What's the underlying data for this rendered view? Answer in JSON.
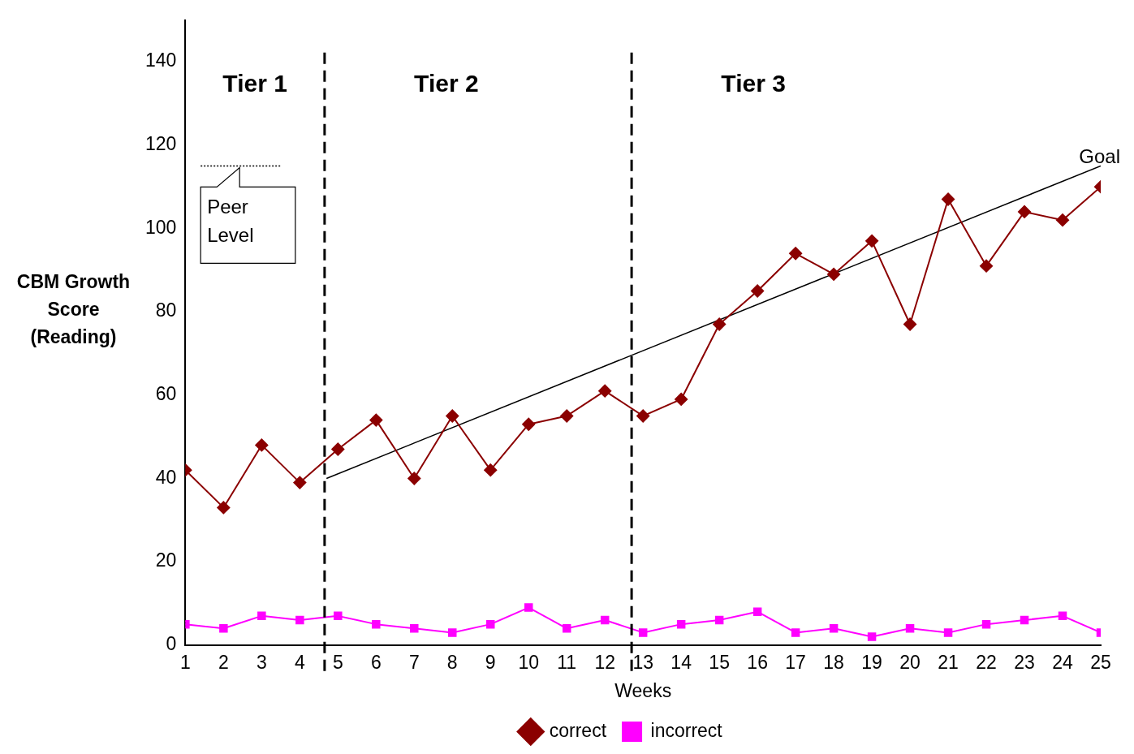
{
  "chart_data": {
    "type": "line",
    "xlabel": "Weeks",
    "ylabel": "CBM Growth Score (Reading)",
    "x": [
      1,
      2,
      3,
      4,
      5,
      6,
      7,
      8,
      9,
      10,
      11,
      12,
      13,
      14,
      15,
      16,
      17,
      18,
      19,
      20,
      21,
      22,
      23,
      24,
      25
    ],
    "xlim": [
      1,
      25
    ],
    "xticks": [
      1,
      2,
      3,
      4,
      5,
      6,
      7,
      8,
      9,
      10,
      11,
      12,
      13,
      14,
      15,
      16,
      17,
      18,
      19,
      20,
      21,
      22,
      23,
      24,
      25
    ],
    "ylim": [
      0,
      150
    ],
    "yticks": [
      0,
      20,
      40,
      60,
      80,
      100,
      120,
      140
    ],
    "series": [
      {
        "name": "correct",
        "color": "#8b0000",
        "marker": "diamond",
        "values": [
          42,
          33,
          48,
          39,
          47,
          54,
          40,
          55,
          42,
          53,
          55,
          61,
          55,
          59,
          77,
          85,
          94,
          89,
          97,
          77,
          107,
          91,
          104,
          102,
          110
        ]
      },
      {
        "name": "incorrect",
        "color": "#ff00ff",
        "marker": "square",
        "values": [
          5,
          4,
          7,
          6,
          7,
          5,
          4,
          3,
          5,
          9,
          4,
          6,
          3,
          5,
          6,
          8,
          3,
          4,
          2,
          4,
          3,
          5,
          6,
          7,
          3
        ]
      },
      {
        "name": "Goal",
        "color": "#000000",
        "marker": "none",
        "line_style": "solid",
        "x": [
          4.7,
          25
        ],
        "values": [
          40,
          115
        ]
      },
      {
        "name": "Peer Level",
        "color": "#000000",
        "marker": "none",
        "line_style": "dotted",
        "x": [
          1.4,
          3.5
        ],
        "values": [
          115,
          115
        ]
      }
    ],
    "ref_lines": [
      {
        "axis": "x",
        "value": 4.65,
        "line_style": "dashed",
        "color": "#000000"
      },
      {
        "axis": "x",
        "value": 12.7,
        "line_style": "dashed",
        "color": "#000000"
      }
    ],
    "annotations": [
      "Tier 1",
      "Tier 2",
      "Tier 3"
    ],
    "grid": false,
    "legend": "bottom"
  }
}
